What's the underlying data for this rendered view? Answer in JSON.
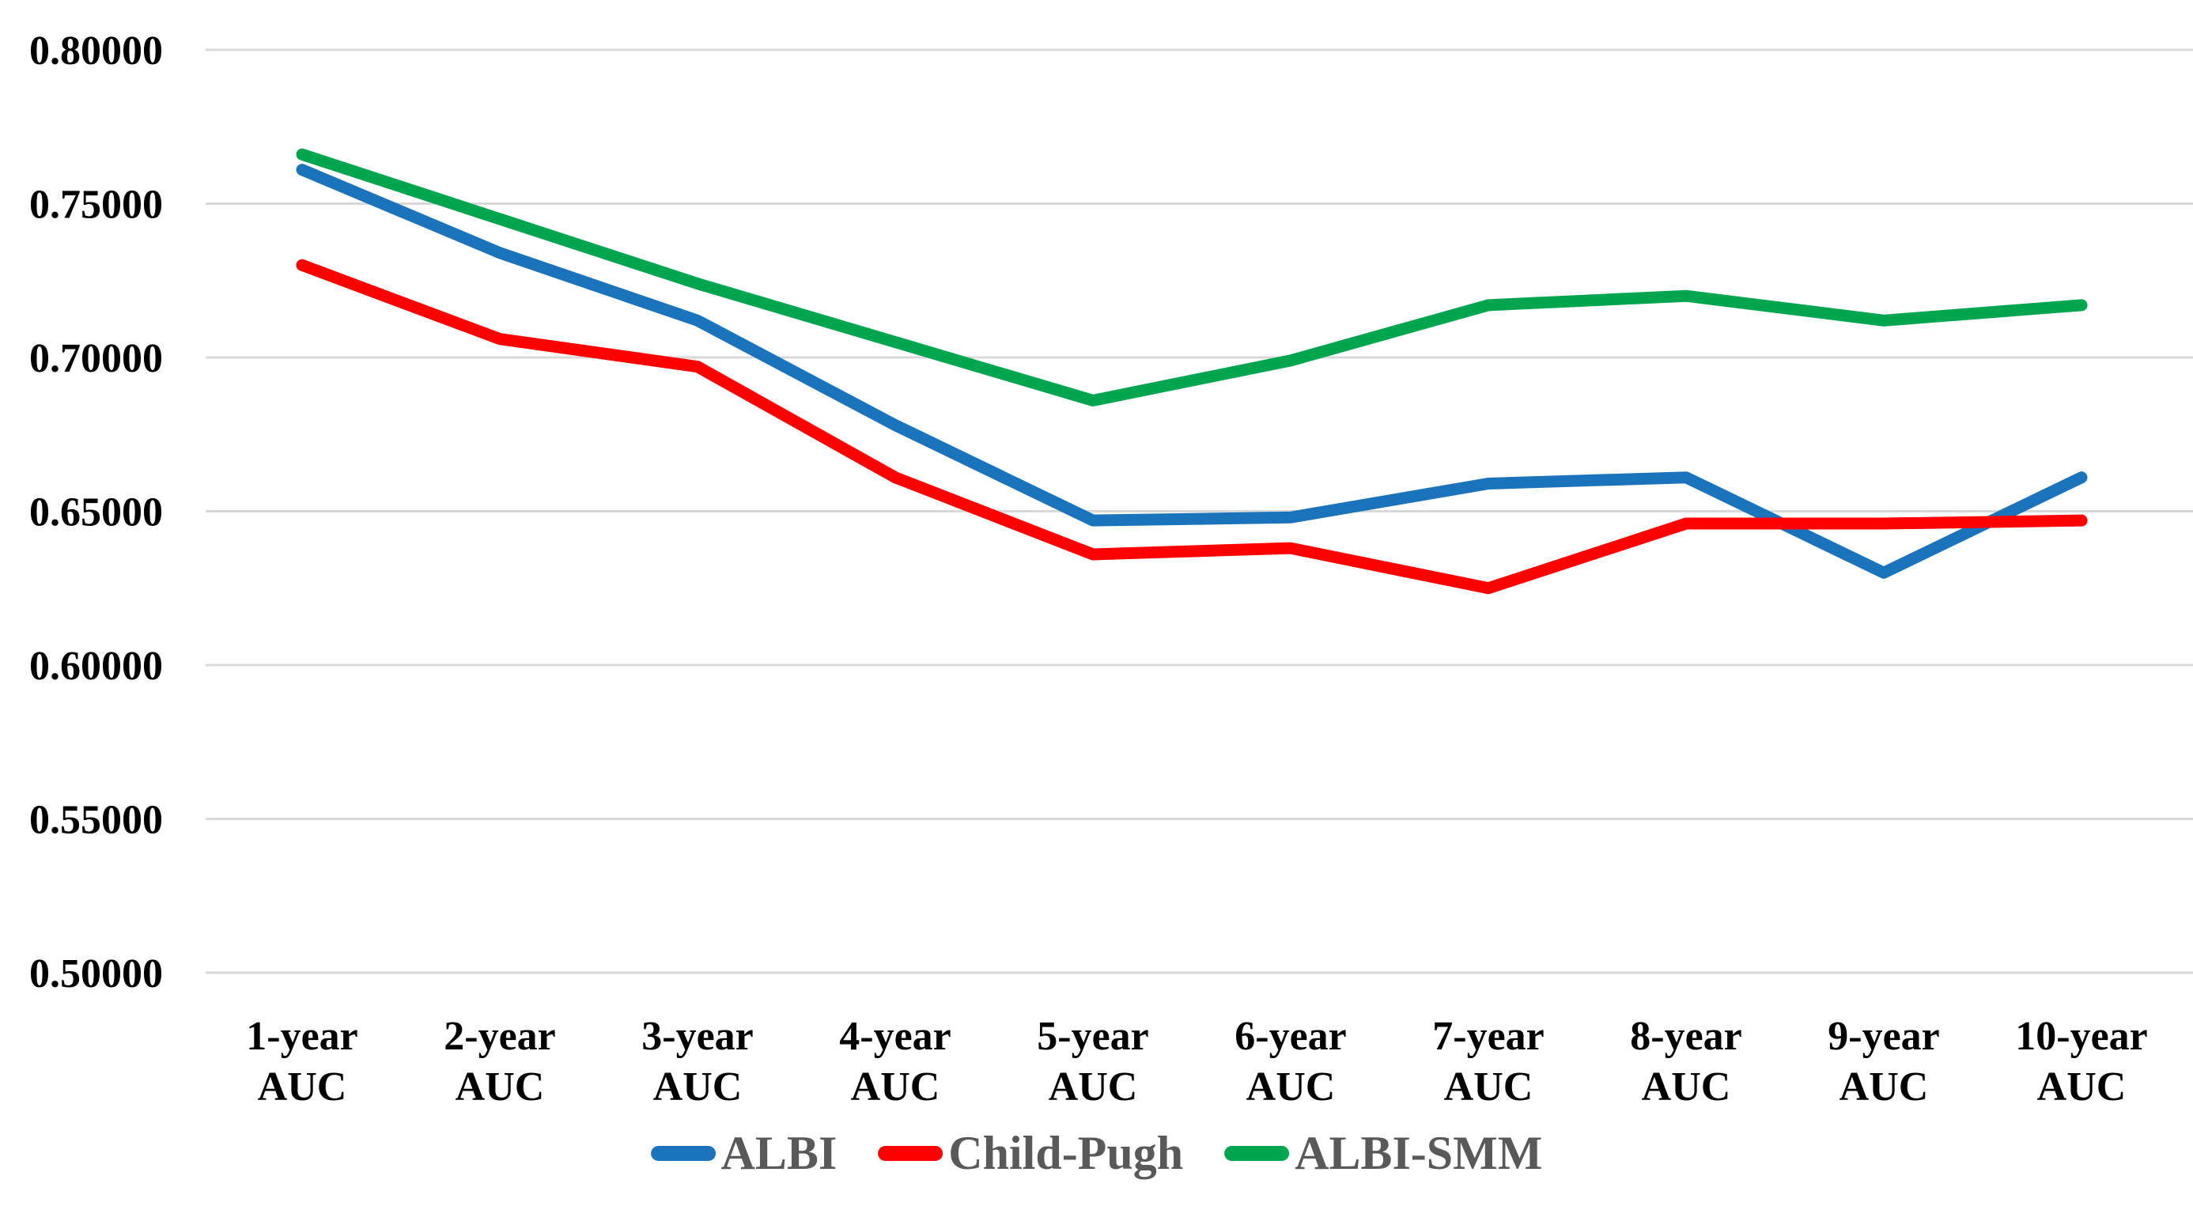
{
  "chart_data": {
    "type": "line",
    "title": "",
    "xlabel": "",
    "ylabel": "",
    "grid": "horizontal",
    "legend_position": "bottom",
    "background_color": "#FFFFFF",
    "grid_color": "#D9D9D9",
    "axis_label_color": "#000000",
    "legend_text_color": "#595959",
    "categories_line1": [
      "1-year",
      "2-year",
      "3-year",
      "4-year",
      "5-year",
      "6-year",
      "7-year",
      "8-year",
      "9-year",
      "10-year"
    ],
    "categories_line2": "AUC",
    "categories": [
      "1-year AUC",
      "2-year AUC",
      "3-year AUC",
      "4-year AUC",
      "5-year AUC",
      "6-year AUC",
      "7-year AUC",
      "8-year AUC",
      "9-year AUC",
      "10-year AUC"
    ],
    "y_axis": {
      "min": 0.5,
      "max": 0.8,
      "step": 0.05,
      "tick_labels": [
        "0.80000",
        "0.75000",
        "0.70000",
        "0.65000",
        "0.60000",
        "0.55000",
        "0.50000"
      ]
    },
    "series": [
      {
        "name": "ALBI",
        "color": "#1B74BB",
        "values": [
          0.761,
          0.734,
          0.712,
          0.678,
          0.647,
          0.648,
          0.659,
          0.661,
          0.63,
          0.661
        ]
      },
      {
        "name": "Child-Pugh",
        "color": "#FE0000",
        "values": [
          0.73,
          0.706,
          0.697,
          0.661,
          0.636,
          0.638,
          0.625,
          0.646,
          0.646,
          0.647
        ]
      },
      {
        "name": "ALBI-SMM",
        "color": "#00A550",
        "values": [
          0.766,
          0.745,
          0.724,
          0.705,
          0.686,
          0.699,
          0.717,
          0.72,
          0.712,
          0.717
        ]
      }
    ]
  }
}
